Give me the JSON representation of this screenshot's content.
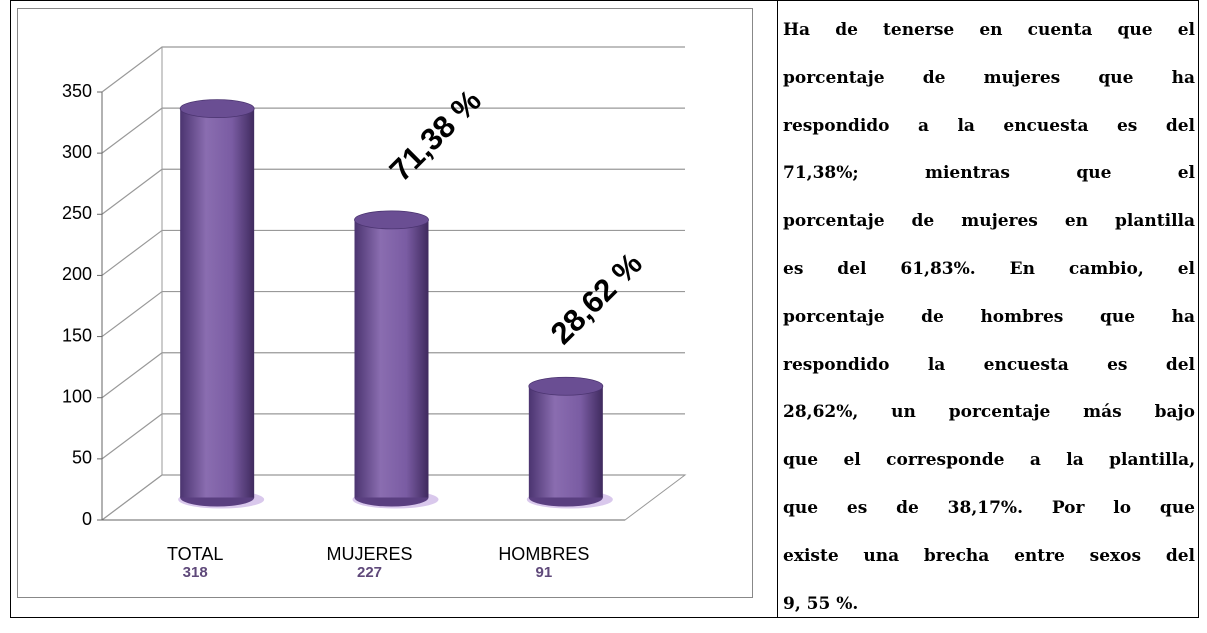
{
  "chart_data": {
    "type": "bar",
    "categories": [
      "TOTAL",
      "MUJERES",
      "HOMBRES"
    ],
    "values": [
      318,
      227,
      91
    ],
    "color": "#8064a2",
    "ylim": [
      0,
      350
    ],
    "yticks": [
      0,
      50,
      100,
      150,
      200,
      250,
      300,
      350
    ],
    "grid": true,
    "annotations": [
      "71,38 %",
      "28,62 %"
    ]
  },
  "text": {
    "lines": [
      "Ha de tenerse en cuenta que el",
      "porcentaje de mujeres que ha",
      "respondido a la encuesta es del",
      "71,38%; mientras que el",
      "porcentaje de mujeres en plantilla",
      "es del 61,83%. En cambio, el",
      "porcentaje de hombres que ha",
      "respondido la encuesta es del",
      "28,62%, un porcentaje más bajo",
      "que el corresponde a la plantilla,",
      "que es de 38,17%. Por lo que",
      "existe una brecha entre sexos del",
      "9, 55 %."
    ]
  }
}
